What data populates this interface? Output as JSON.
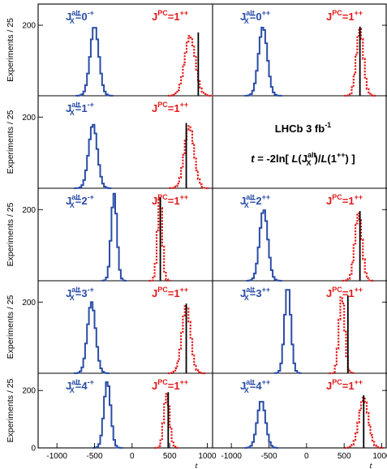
{
  "figure": {
    "ylabel": "Experiments / 25",
    "xlabel": "t",
    "info_line1": "LHCb 3 fb",
    "info_line1_sup": "-1",
    "info_line2": {
      "t": "t",
      "eq": " = -2ln[ ",
      "L1": "L",
      "open1": "(J",
      "X": "X",
      "alt": "alt",
      "close1": ")/",
      "L2": "L",
      "open2": "(1",
      "pp": "++",
      "close2": ") ]"
    },
    "colors": {
      "alt": "#2a4da6",
      "null": "#e11a1a",
      "observed": "#000000"
    }
  },
  "chart_data": [
    {
      "type": "histogram",
      "panel": "0-+",
      "alt_label": {
        "J": "J",
        "sub": "X",
        "sup": "alt",
        "eq": "=0",
        "pc": "-+"
      },
      "null_label": {
        "J": "J",
        "sup": "PC",
        "eq": "=1",
        "pc": "++"
      },
      "alt_hist": {
        "mean": -500,
        "sigma": 58,
        "peak": 197
      },
      "null_hist": {
        "mean": 770,
        "sigma": 72,
        "peak": 170
      },
      "observed_t": 880,
      "xlim": [
        -1250,
        1070
      ],
      "ylim": [
        0,
        260
      ],
      "yticks": [
        200
      ],
      "xticks": [
        -1000,
        -500,
        0,
        500,
        1000
      ]
    },
    {
      "type": "histogram",
      "panel": "0++",
      "alt_label": {
        "J": "J",
        "sub": "X",
        "sup": "alt",
        "eq": "=0",
        "pc": "++"
      },
      "null_label": {
        "J": "J",
        "sup": "PC",
        "eq": "=1",
        "pc": "++"
      },
      "alt_hist": {
        "mean": -580,
        "sigma": 58,
        "peak": 195
      },
      "null_hist": {
        "mean": 710,
        "sigma": 48,
        "peak": 190
      },
      "observed_t": 710,
      "xlim": [
        -1250,
        1070
      ],
      "ylim": [
        0,
        260
      ],
      "yticks": [
        200
      ],
      "xticks": [
        -1000,
        -500,
        0,
        500,
        1000
      ]
    },
    {
      "type": "histogram",
      "panel": "1-+",
      "alt_label": {
        "J": "J",
        "sub": "X",
        "sup": "alt",
        "eq": "=1",
        "pc": "-+"
      },
      "null_label": {
        "J": "J",
        "sup": "PC",
        "eq": "=1",
        "pc": "++"
      },
      "alt_hist": {
        "mean": -520,
        "sigma": 58,
        "peak": 180
      },
      "null_hist": {
        "mean": 760,
        "sigma": 65,
        "peak": 175
      },
      "observed_t": 720,
      "xlim": [
        -1250,
        1070
      ],
      "ylim": [
        0,
        260
      ],
      "yticks": [
        200
      ],
      "xticks": [
        -1000,
        -500,
        0,
        500,
        1000
      ]
    },
    {
      "type": "text-panel",
      "panel": "info"
    },
    {
      "type": "histogram",
      "panel": "2-+",
      "alt_label": {
        "J": "J",
        "sub": "X",
        "sup": "alt",
        "eq": "=2",
        "pc": "-+"
      },
      "null_label": {
        "J": "J",
        "sup": "PC",
        "eq": "=1",
        "pc": "++"
      },
      "alt_hist": {
        "mean": -240,
        "sigma": 38,
        "peak": 245
      },
      "null_hist": {
        "mean": 370,
        "sigma": 32,
        "peak": 238
      },
      "observed_t": 375,
      "xlim": [
        -1250,
        1070
      ],
      "ylim": [
        0,
        260
      ],
      "yticks": [
        200
      ],
      "xticks": [
        -1000,
        -500,
        0,
        500,
        1000
      ]
    },
    {
      "type": "histogram",
      "panel": "2++",
      "alt_label": {
        "J": "J",
        "sub": "X",
        "sup": "alt",
        "eq": "=2",
        "pc": "++"
      },
      "null_label": {
        "J": "J",
        "sup": "PC",
        "eq": "=1",
        "pc": "++"
      },
      "alt_hist": {
        "mean": -570,
        "sigma": 55,
        "peak": 200
      },
      "null_hist": {
        "mean": 690,
        "sigma": 48,
        "peak": 190
      },
      "observed_t": 710,
      "xlim": [
        -1250,
        1070
      ],
      "ylim": [
        0,
        260
      ],
      "yticks": [
        200
      ],
      "xticks": [
        -1000,
        -500,
        0,
        500,
        1000
      ]
    },
    {
      "type": "histogram",
      "panel": "3-+",
      "alt_label": {
        "J": "J",
        "sub": "X",
        "sup": "alt",
        "eq": "=3",
        "pc": "-+"
      },
      "null_label": {
        "J": "J",
        "sup": "PC",
        "eq": "=1",
        "pc": "++"
      },
      "alt_hist": {
        "mean": -540,
        "sigma": 55,
        "peak": 200
      },
      "null_hist": {
        "mean": 720,
        "sigma": 58,
        "peak": 190
      },
      "observed_t": 720,
      "xlim": [
        -1250,
        1070
      ],
      "ylim": [
        0,
        260
      ],
      "yticks": [
        200
      ],
      "xticks": [
        -1000,
        -500,
        0,
        500,
        1000
      ]
    },
    {
      "type": "histogram",
      "panel": "3++",
      "alt_label": {
        "J": "J",
        "sub": "X",
        "sup": "alt",
        "eq": "=3",
        "pc": "++"
      },
      "null_label": {
        "J": "J",
        "sup": "PC",
        "eq": "=1",
        "pc": "++"
      },
      "alt_hist": {
        "mean": -250,
        "sigma": 42,
        "peak": 245
      },
      "null_hist": {
        "mean": 470,
        "sigma": 38,
        "peak": 218
      },
      "observed_t": 550,
      "xlim": [
        -1250,
        1070
      ],
      "ylim": [
        0,
        260
      ],
      "yticks": [
        200
      ],
      "xticks": [
        -1000,
        -500,
        0,
        500,
        1000
      ]
    },
    {
      "type": "histogram",
      "panel": "4-+",
      "alt_label": {
        "J": "J",
        "sub": "X",
        "sup": "alt",
        "eq": "=4",
        "pc": "-+"
      },
      "null_label": {
        "J": "J",
        "sup": "PC",
        "eq": "=1",
        "pc": "++"
      },
      "alt_hist": {
        "mean": -330,
        "sigma": 45,
        "peak": 232
      },
      "null_hist": {
        "mean": 460,
        "sigma": 38,
        "peak": 188
      },
      "observed_t": 480,
      "xlim": [
        -1250,
        1070
      ],
      "ylim": [
        0,
        260
      ],
      "yticks": [
        200
      ],
      "xticks": [
        -1000,
        -500,
        0,
        500,
        1000
      ]
    },
    {
      "type": "histogram",
      "panel": "4++",
      "alt_label": {
        "J": "J",
        "sub": "X",
        "sup": "alt",
        "eq": "=4",
        "pc": "++"
      },
      "null_label": {
        "J": "J",
        "sup": "PC",
        "eq": "=1",
        "pc": "++"
      },
      "alt_hist": {
        "mean": -600,
        "sigma": 55,
        "peak": 165
      },
      "null_hist": {
        "mean": 760,
        "sigma": 62,
        "peak": 175
      },
      "observed_t": 760,
      "xlim": [
        -1250,
        1070
      ],
      "ylim": [
        0,
        260
      ],
      "yticks": [
        200
      ],
      "xticks": [
        -1000,
        -500,
        0,
        500,
        1000
      ]
    }
  ]
}
